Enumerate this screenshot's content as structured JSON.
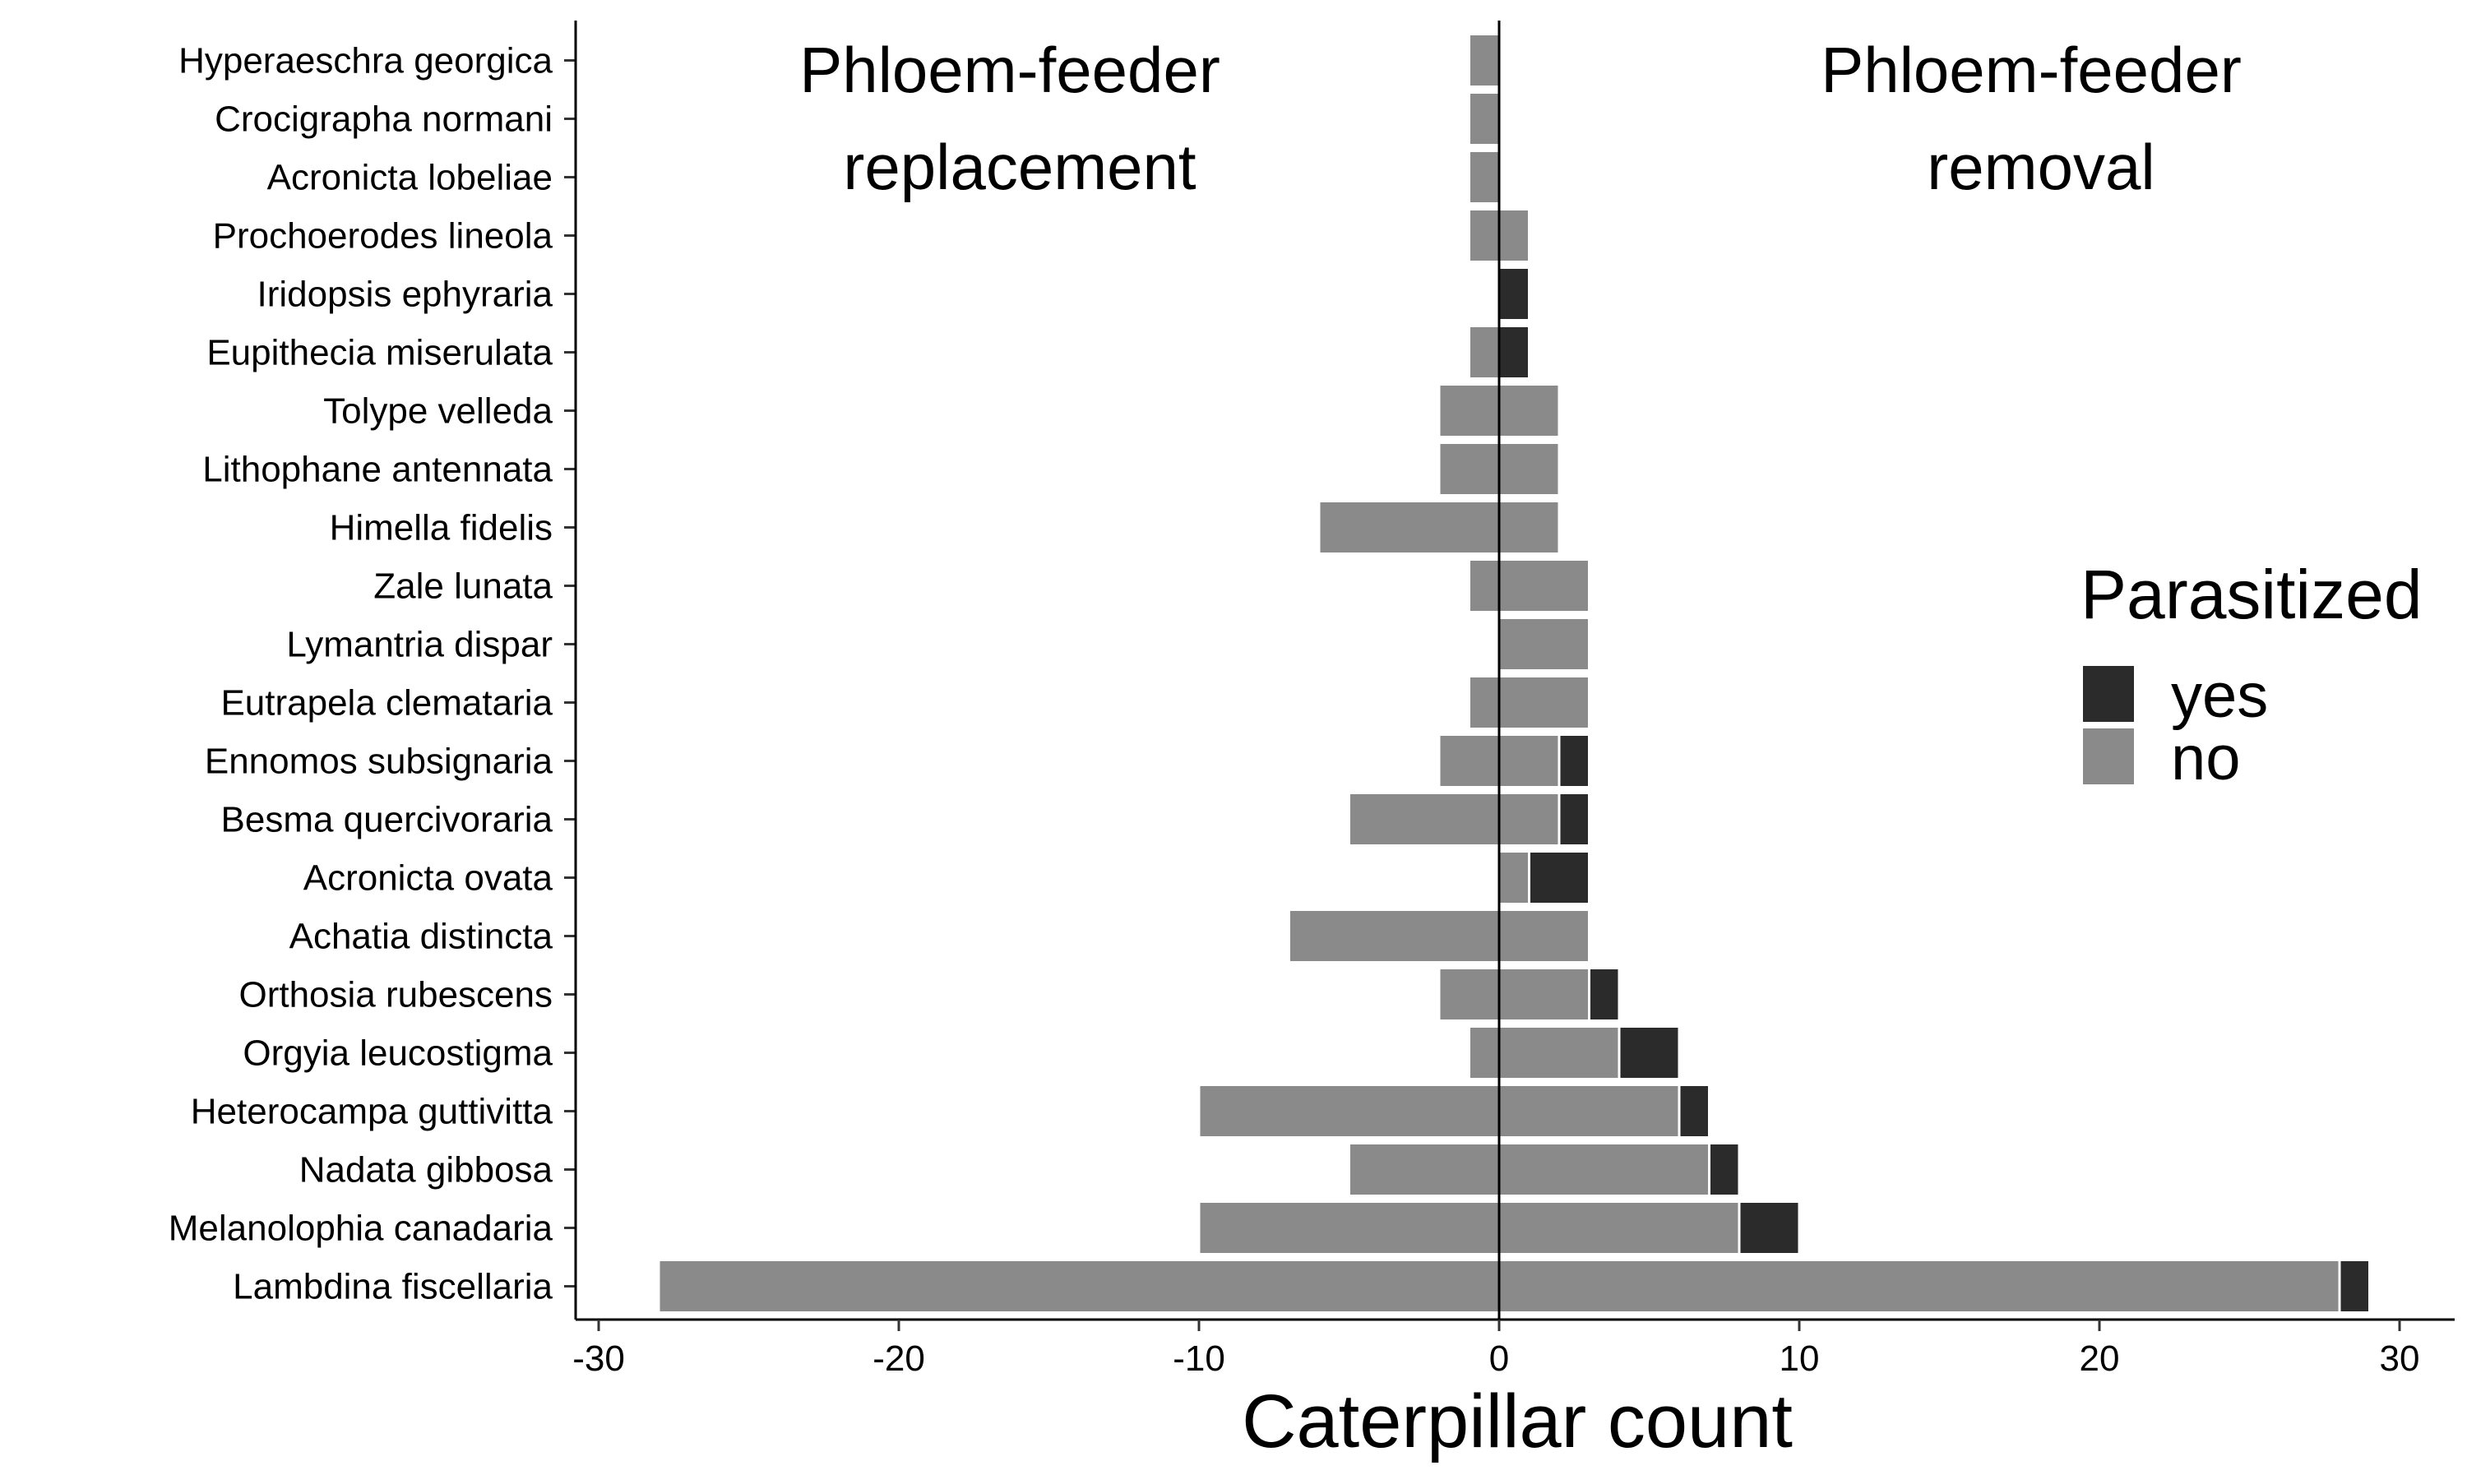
{
  "chart_data": {
    "type": "bar",
    "orientation": "horizontal",
    "stacked": true,
    "diverging": true,
    "panel_titles": {
      "left": [
        "Phloem-feeder",
        "replacement"
      ],
      "right": [
        "Phloem-feeder",
        "removal"
      ]
    },
    "xlabel": "Caterpillar count",
    "ylabel": "",
    "xlim": [
      -30,
      30
    ],
    "x_ticks": [
      -30,
      -20,
      -10,
      0,
      10,
      20,
      30
    ],
    "grid": false,
    "legend": {
      "title": "Parasitized",
      "position": "right",
      "entries": [
        {
          "label": "yes",
          "color": "#2b2b2b"
        },
        {
          "label": "no",
          "color": "#8a8a8a"
        }
      ]
    },
    "categories": [
      "Hyperaeschra georgica",
      "Crocigrapha normani",
      "Acronicta lobeliae",
      "Prochoerodes lineola",
      "Iridopsis ephyraria",
      "Eupithecia miserulata",
      "Tolype velleda",
      "Lithophane antennata",
      "Himella fidelis",
      "Zale lunata",
      "Lymantria dispar",
      "Eutrapela clemataria",
      "Ennomos subsignaria",
      "Besma quercivoraria",
      "Acronicta ovata",
      "Achatia distincta",
      "Orthosia rubescens",
      "Orgyia leucostigma",
      "Heterocampa guttivitta",
      "Nadata gibbosa",
      "Melanolophia canadaria",
      "Lambdina fiscellaria"
    ],
    "series": [
      {
        "name": "no",
        "panel": "Phloem-feeder replacement",
        "values": [
          -1,
          -1,
          -1,
          -1,
          0,
          -1,
          -2,
          -2,
          -6,
          -1,
          0,
          -1,
          -2,
          -5,
          0,
          -7,
          -2,
          -1,
          -10,
          -5,
          -10,
          -28
        ]
      },
      {
        "name": "yes",
        "panel": "Phloem-feeder replacement",
        "values": [
          0,
          0,
          0,
          0,
          0,
          0,
          0,
          0,
          0,
          0,
          0,
          0,
          0,
          0,
          0,
          0,
          0,
          0,
          0,
          0,
          0,
          0
        ]
      },
      {
        "name": "no",
        "panel": "Phloem-feeder removal",
        "values": [
          0,
          0,
          0,
          1,
          0,
          0,
          2,
          2,
          2,
          3,
          3,
          3,
          2,
          2,
          1,
          3,
          3,
          4,
          6,
          7,
          8,
          28
        ]
      },
      {
        "name": "yes",
        "panel": "Phloem-feeder removal",
        "values": [
          0,
          0,
          0,
          0,
          1,
          1,
          0,
          0,
          0,
          0,
          0,
          0,
          1,
          1,
          2,
          0,
          1,
          2,
          1,
          1,
          2,
          1
        ]
      }
    ],
    "colors": {
      "yes": "#2b2b2b",
      "no": "#8a8a8a",
      "separator": "#ffffff",
      "axis": "#000000"
    }
  }
}
